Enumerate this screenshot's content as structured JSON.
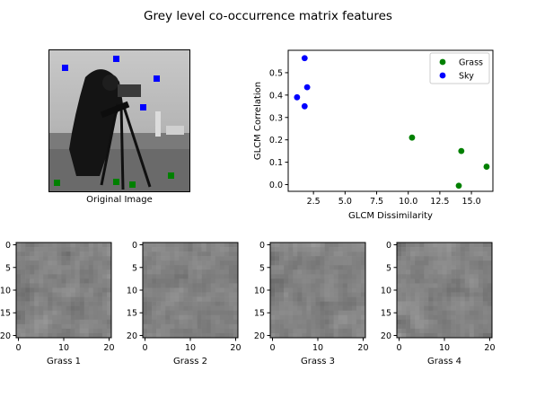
{
  "figure_title": "Grey level co-occurrence matrix features",
  "image_panel": {
    "caption": "Original Image"
  },
  "colors": {
    "grass": "#008000",
    "sky": "#0000ff"
  },
  "chart_data": [
    {
      "type": "scatter",
      "xlabel": "GLCM Dissimilarity",
      "ylabel": "GLCM Correlation",
      "xlim": [
        0.5,
        16.7
      ],
      "ylim": [
        -0.03,
        0.6
      ],
      "xticks": [
        2.5,
        5.0,
        7.5,
        10.0,
        12.5,
        15.0
      ],
      "xtick_labels": [
        "2.5",
        "5.0",
        "7.5",
        "10.0",
        "12.5",
        "15.0"
      ],
      "yticks": [
        0.0,
        0.1,
        0.2,
        0.3,
        0.4,
        0.5
      ],
      "ytick_labels": [
        "0.0",
        "0.1",
        "0.2",
        "0.3",
        "0.4",
        "0.5"
      ],
      "legend_position": "top-right",
      "series": [
        {
          "name": "Grass",
          "color": "#008000",
          "x": [
            10.3,
            14.2,
            14.0,
            16.2
          ],
          "y": [
            0.21,
            0.15,
            -0.005,
            0.08
          ]
        },
        {
          "name": "Sky",
          "color": "#0000ff",
          "x": [
            1.8,
            2.0,
            1.2,
            1.8
          ],
          "y": [
            0.565,
            0.435,
            0.39,
            0.35
          ]
        }
      ]
    },
    {
      "type": "heatmap",
      "caption": "Grass 1",
      "xticks": [
        0,
        10,
        20
      ],
      "yticks": [
        0,
        5,
        10,
        15,
        20
      ],
      "size": 21,
      "seed": 11
    },
    {
      "type": "heatmap",
      "caption": "Grass 2",
      "xticks": [
        0,
        10,
        20
      ],
      "yticks": [
        0,
        5,
        10,
        15,
        20
      ],
      "size": 21,
      "seed": 23
    },
    {
      "type": "heatmap",
      "caption": "Grass 3",
      "xticks": [
        0,
        10,
        20
      ],
      "yticks": [
        0,
        5,
        10,
        15,
        20
      ],
      "size": 21,
      "seed": 37
    },
    {
      "type": "heatmap",
      "caption": "Grass 4",
      "xticks": [
        0,
        10,
        20
      ],
      "yticks": [
        0,
        5,
        10,
        15,
        20
      ],
      "size": 21,
      "seed": 51
    }
  ]
}
